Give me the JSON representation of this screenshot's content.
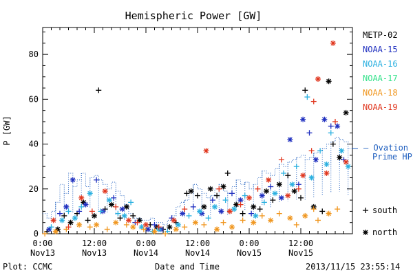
{
  "chart_data": {
    "type": "scatter",
    "title": "Hemispheric Power [GW]",
    "xlabel": "Date and Time",
    "ylabel": "P [GW]",
    "xlim": [
      0,
      72
    ],
    "ylim": [
      0,
      92
    ],
    "xticks": [
      {
        "hour": 0,
        "line1": "0:00",
        "line2": "Nov13"
      },
      {
        "hour": 12,
        "line1": "12:00",
        "line2": "Nov13"
      },
      {
        "hour": 24,
        "line1": "0:00",
        "line2": "Nov14"
      },
      {
        "hour": 36,
        "line1": "12:00",
        "line2": "Nov14"
      },
      {
        "hour": 48,
        "line1": "0:00",
        "line2": "Nov15"
      },
      {
        "hour": 60,
        "line1": "12:00",
        "line2": "Nov15"
      }
    ],
    "yticks": [
      0,
      20,
      40,
      60,
      80
    ],
    "footer_left": "Plot: CCMC",
    "footer_right": "2013/11/15 23:55:14",
    "ovation": {
      "label_line1": "— Ovation",
      "label_line2": "Prime HPI",
      "color": "#1f5fbf",
      "steps": [
        [
          0,
          9
        ],
        [
          1,
          7
        ],
        [
          2,
          10
        ],
        [
          3,
          14
        ],
        [
          4,
          22
        ],
        [
          5,
          18
        ],
        [
          6,
          27
        ],
        [
          7,
          21
        ],
        [
          8,
          24
        ],
        [
          9,
          27
        ],
        [
          10,
          21
        ],
        [
          11,
          25
        ],
        [
          12,
          26
        ],
        [
          13,
          24
        ],
        [
          14,
          22
        ],
        [
          15,
          20
        ],
        [
          16,
          23
        ],
        [
          17,
          19
        ],
        [
          18,
          17
        ],
        [
          19,
          13
        ],
        [
          20,
          9
        ],
        [
          21,
          7
        ],
        [
          22,
          7
        ],
        [
          23,
          6
        ],
        [
          24,
          6
        ],
        [
          25,
          7
        ],
        [
          26,
          5
        ],
        [
          27,
          5
        ],
        [
          28,
          4
        ],
        [
          29,
          6
        ],
        [
          30,
          8
        ],
        [
          31,
          12
        ],
        [
          32,
          14
        ],
        [
          33,
          15
        ],
        [
          34,
          18
        ],
        [
          35,
          22
        ],
        [
          36,
          20
        ],
        [
          37,
          18
        ],
        [
          38,
          16
        ],
        [
          39,
          17
        ],
        [
          40,
          20
        ],
        [
          41,
          22
        ],
        [
          42,
          19
        ],
        [
          43,
          18
        ],
        [
          44,
          21
        ],
        [
          45,
          24
        ],
        [
          46,
          22
        ],
        [
          47,
          23
        ],
        [
          48,
          20
        ],
        [
          49,
          22
        ],
        [
          50,
          25
        ],
        [
          51,
          28
        ],
        [
          52,
          27
        ],
        [
          53,
          26
        ],
        [
          54,
          29
        ],
        [
          55,
          31
        ],
        [
          56,
          30
        ],
        [
          57,
          32
        ],
        [
          58,
          33
        ],
        [
          59,
          34
        ],
        [
          60,
          35
        ],
        [
          61,
          33
        ],
        [
          62,
          34
        ],
        [
          63,
          36
        ],
        [
          64,
          37
        ],
        [
          65,
          38
        ],
        [
          66,
          40
        ],
        [
          67,
          41
        ],
        [
          68,
          43
        ],
        [
          69,
          42
        ],
        [
          70,
          41
        ],
        [
          71,
          38
        ]
      ]
    },
    "legend_markers": [
      {
        "label": "south",
        "symbol": "+"
      },
      {
        "label": "north",
        "symbol": "*"
      }
    ],
    "series": [
      {
        "name": "METP-02",
        "color": "#000000",
        "points": [
          [
            1.0,
            1,
            "+"
          ],
          [
            3.5,
            2,
            "*"
          ],
          [
            5.0,
            8,
            "+"
          ],
          [
            6.5,
            5,
            "*"
          ],
          [
            8.0,
            9,
            "+"
          ],
          [
            9.5,
            14,
            "*"
          ],
          [
            10.5,
            6,
            "+"
          ],
          [
            12.0,
            8,
            "*"
          ],
          [
            13.0,
            64,
            "+"
          ],
          [
            14.5,
            11,
            "+"
          ],
          [
            16.0,
            13,
            "*"
          ],
          [
            18.0,
            7,
            "+"
          ],
          [
            19.5,
            12,
            "*"
          ],
          [
            21.0,
            8,
            "+"
          ],
          [
            22.5,
            6,
            "*"
          ],
          [
            25.0,
            4,
            "+"
          ],
          [
            26.5,
            3,
            "*"
          ],
          [
            28.0,
            2,
            "+"
          ],
          [
            29.5,
            3,
            "*"
          ],
          [
            31.0,
            5,
            "+"
          ],
          [
            33.5,
            18,
            "+"
          ],
          [
            34.5,
            19,
            "*"
          ],
          [
            36.0,
            17,
            "+"
          ],
          [
            37.5,
            12,
            "*"
          ],
          [
            39.0,
            20,
            "*"
          ],
          [
            40.5,
            17,
            "+"
          ],
          [
            42.0,
            21,
            "*"
          ],
          [
            43.0,
            27,
            "+"
          ],
          [
            45.0,
            13,
            "*"
          ],
          [
            46.5,
            9,
            "+"
          ],
          [
            49.0,
            12,
            "*"
          ],
          [
            50.5,
            11,
            "+"
          ],
          [
            52.0,
            19,
            "*"
          ],
          [
            53.5,
            15,
            "+"
          ],
          [
            55.0,
            22,
            "*"
          ],
          [
            57.0,
            26,
            "+"
          ],
          [
            58.5,
            19,
            "*"
          ],
          [
            60.0,
            16,
            "+"
          ],
          [
            61.0,
            64,
            "+"
          ],
          [
            63.0,
            12,
            "*"
          ],
          [
            65.0,
            10,
            "+"
          ],
          [
            66.5,
            68,
            "*"
          ],
          [
            67.5,
            40,
            "+"
          ],
          [
            69.0,
            34,
            "*"
          ],
          [
            70.5,
            54,
            "*"
          ]
        ]
      },
      {
        "name": "NOAA-15",
        "color": "#1f2fbf",
        "points": [
          [
            1.5,
            2,
            "*"
          ],
          [
            4.0,
            9,
            "+"
          ],
          [
            5.5,
            12,
            "*"
          ],
          [
            7.0,
            24,
            "*"
          ],
          [
            8.5,
            10,
            "+"
          ],
          [
            10.0,
            13,
            "*"
          ],
          [
            12.5,
            24,
            "+"
          ],
          [
            14.0,
            10,
            "*"
          ],
          [
            16.5,
            16,
            "+"
          ],
          [
            18.5,
            11,
            "*"
          ],
          [
            21.5,
            5,
            "+"
          ],
          [
            24.5,
            2,
            "*"
          ],
          [
            26.0,
            4,
            "+"
          ],
          [
            27.5,
            2,
            "*"
          ],
          [
            30.0,
            7,
            "+"
          ],
          [
            32.5,
            9,
            "*"
          ],
          [
            35.0,
            12,
            "+"
          ],
          [
            37.0,
            9,
            "*"
          ],
          [
            39.5,
            15,
            "+"
          ],
          [
            41.5,
            10,
            "*"
          ],
          [
            44.0,
            18,
            "+"
          ],
          [
            46.0,
            15,
            "*"
          ],
          [
            48.5,
            9,
            "+"
          ],
          [
            51.0,
            17,
            "*"
          ],
          [
            53.0,
            21,
            "+"
          ],
          [
            55.5,
            16,
            "*"
          ],
          [
            57.5,
            42,
            "*"
          ],
          [
            59.5,
            22,
            "+"
          ],
          [
            60.5,
            51,
            "*"
          ],
          [
            62.0,
            45,
            "+"
          ],
          [
            63.5,
            33,
            "*"
          ],
          [
            65.5,
            51,
            "*"
          ],
          [
            67.0,
            48,
            "+"
          ],
          [
            68.5,
            48,
            "*"
          ],
          [
            70.0,
            33,
            "+"
          ]
        ]
      },
      {
        "name": "NOAA-16",
        "color": "#2ab0e0",
        "points": [
          [
            2.0,
            3,
            "+"
          ],
          [
            4.5,
            6,
            "*"
          ],
          [
            6.0,
            10,
            "+"
          ],
          [
            7.5,
            7,
            "*"
          ],
          [
            9.0,
            12,
            "+"
          ],
          [
            11.0,
            18,
            "*"
          ],
          [
            13.5,
            10,
            "+"
          ],
          [
            15.5,
            15,
            "*"
          ],
          [
            17.5,
            9,
            "+"
          ],
          [
            19.0,
            8,
            "*"
          ],
          [
            20.5,
            14,
            "+"
          ],
          [
            23.0,
            3,
            "*"
          ],
          [
            25.5,
            1,
            "+"
          ],
          [
            27.0,
            2,
            "*"
          ],
          [
            29.0,
            1,
            "+"
          ],
          [
            31.5,
            4,
            "*"
          ],
          [
            34.0,
            8,
            "+"
          ],
          [
            36.5,
            10,
            "*"
          ],
          [
            38.5,
            7,
            "+"
          ],
          [
            40.0,
            12,
            "*"
          ],
          [
            42.5,
            15,
            "+"
          ],
          [
            44.5,
            11,
            "*"
          ],
          [
            47.0,
            17,
            "+"
          ],
          [
            49.5,
            8,
            "*"
          ],
          [
            51.5,
            14,
            "+"
          ],
          [
            54.0,
            18,
            "*"
          ],
          [
            56.0,
            27,
            "+"
          ],
          [
            58.0,
            22,
            "*"
          ],
          [
            59.0,
            30,
            "+"
          ],
          [
            61.5,
            61,
            "+"
          ],
          [
            62.5,
            25,
            "*"
          ],
          [
            64.5,
            37,
            "+"
          ],
          [
            66.0,
            31,
            "*"
          ],
          [
            67.0,
            45,
            "+"
          ],
          [
            69.5,
            37,
            "*"
          ],
          [
            71.0,
            30,
            "*"
          ]
        ]
      },
      {
        "name": "NOAA-17",
        "color": "#33e28a",
        "points": []
      },
      {
        "name": "NOAA-18",
        "color": "#f0961e",
        "points": [
          [
            0.5,
            0,
            "+"
          ],
          [
            3.0,
            1,
            "*"
          ],
          [
            5.5,
            2,
            "+"
          ],
          [
            8.5,
            4,
            "*"
          ],
          [
            11.0,
            3,
            "+"
          ],
          [
            12.5,
            4,
            "*"
          ],
          [
            15.0,
            2,
            "+"
          ],
          [
            17.0,
            5,
            "*"
          ],
          [
            19.5,
            4,
            "+"
          ],
          [
            21.0,
            3,
            "*"
          ],
          [
            23.5,
            2,
            "+"
          ],
          [
            26.0,
            1,
            "*"
          ],
          [
            28.5,
            0,
            "+"
          ],
          [
            31.0,
            2,
            "*"
          ],
          [
            33.0,
            3,
            "+"
          ],
          [
            35.5,
            5,
            "*"
          ],
          [
            37.5,
            4,
            "+"
          ],
          [
            40.5,
            2,
            "*"
          ],
          [
            42.0,
            5,
            "+"
          ],
          [
            44.0,
            3,
            "*"
          ],
          [
            46.5,
            6,
            "+"
          ],
          [
            49.0,
            5,
            "*"
          ],
          [
            51.0,
            8,
            "+"
          ],
          [
            53.0,
            6,
            "*"
          ],
          [
            55.0,
            9,
            "+"
          ],
          [
            57.5,
            7,
            "*"
          ],
          [
            59.0,
            4,
            "+"
          ],
          [
            61.0,
            8,
            "*"
          ],
          [
            63.0,
            11,
            "+"
          ],
          [
            64.0,
            6,
            "+"
          ],
          [
            66.5,
            9,
            "*"
          ],
          [
            68.5,
            11,
            "+"
          ]
        ]
      },
      {
        "name": "NOAA-19",
        "color": "#e0361e",
        "points": [
          [
            2.5,
            6,
            "*"
          ],
          [
            6.0,
            3,
            "+"
          ],
          [
            9.0,
            16,
            "*"
          ],
          [
            11.5,
            10,
            "+"
          ],
          [
            14.5,
            19,
            "*"
          ],
          [
            17.0,
            12,
            "+"
          ],
          [
            20.0,
            6,
            "*"
          ],
          [
            22.0,
            5,
            "+"
          ],
          [
            24.0,
            4,
            "*"
          ],
          [
            27.0,
            3,
            "+"
          ],
          [
            30.5,
            6,
            "*"
          ],
          [
            33.0,
            11,
            "+"
          ],
          [
            38.0,
            37,
            "*"
          ],
          [
            41.0,
            20,
            "+"
          ],
          [
            43.5,
            10,
            "*"
          ],
          [
            46.0,
            13,
            "+"
          ],
          [
            48.0,
            16,
            "*"
          ],
          [
            50.0,
            20,
            "+"
          ],
          [
            52.5,
            24,
            "*"
          ],
          [
            55.5,
            33,
            "+"
          ],
          [
            57.0,
            17,
            "*"
          ],
          [
            59.5,
            20,
            "+"
          ],
          [
            60.5,
            26,
            "*"
          ],
          [
            62.5,
            37,
            "+"
          ],
          [
            63.0,
            59,
            "+"
          ],
          [
            64.0,
            69,
            "*"
          ],
          [
            66.0,
            27,
            "*"
          ],
          [
            67.5,
            85,
            "*"
          ],
          [
            68.0,
            50,
            "+"
          ],
          [
            70.5,
            32,
            "*"
          ]
        ]
      }
    ]
  }
}
